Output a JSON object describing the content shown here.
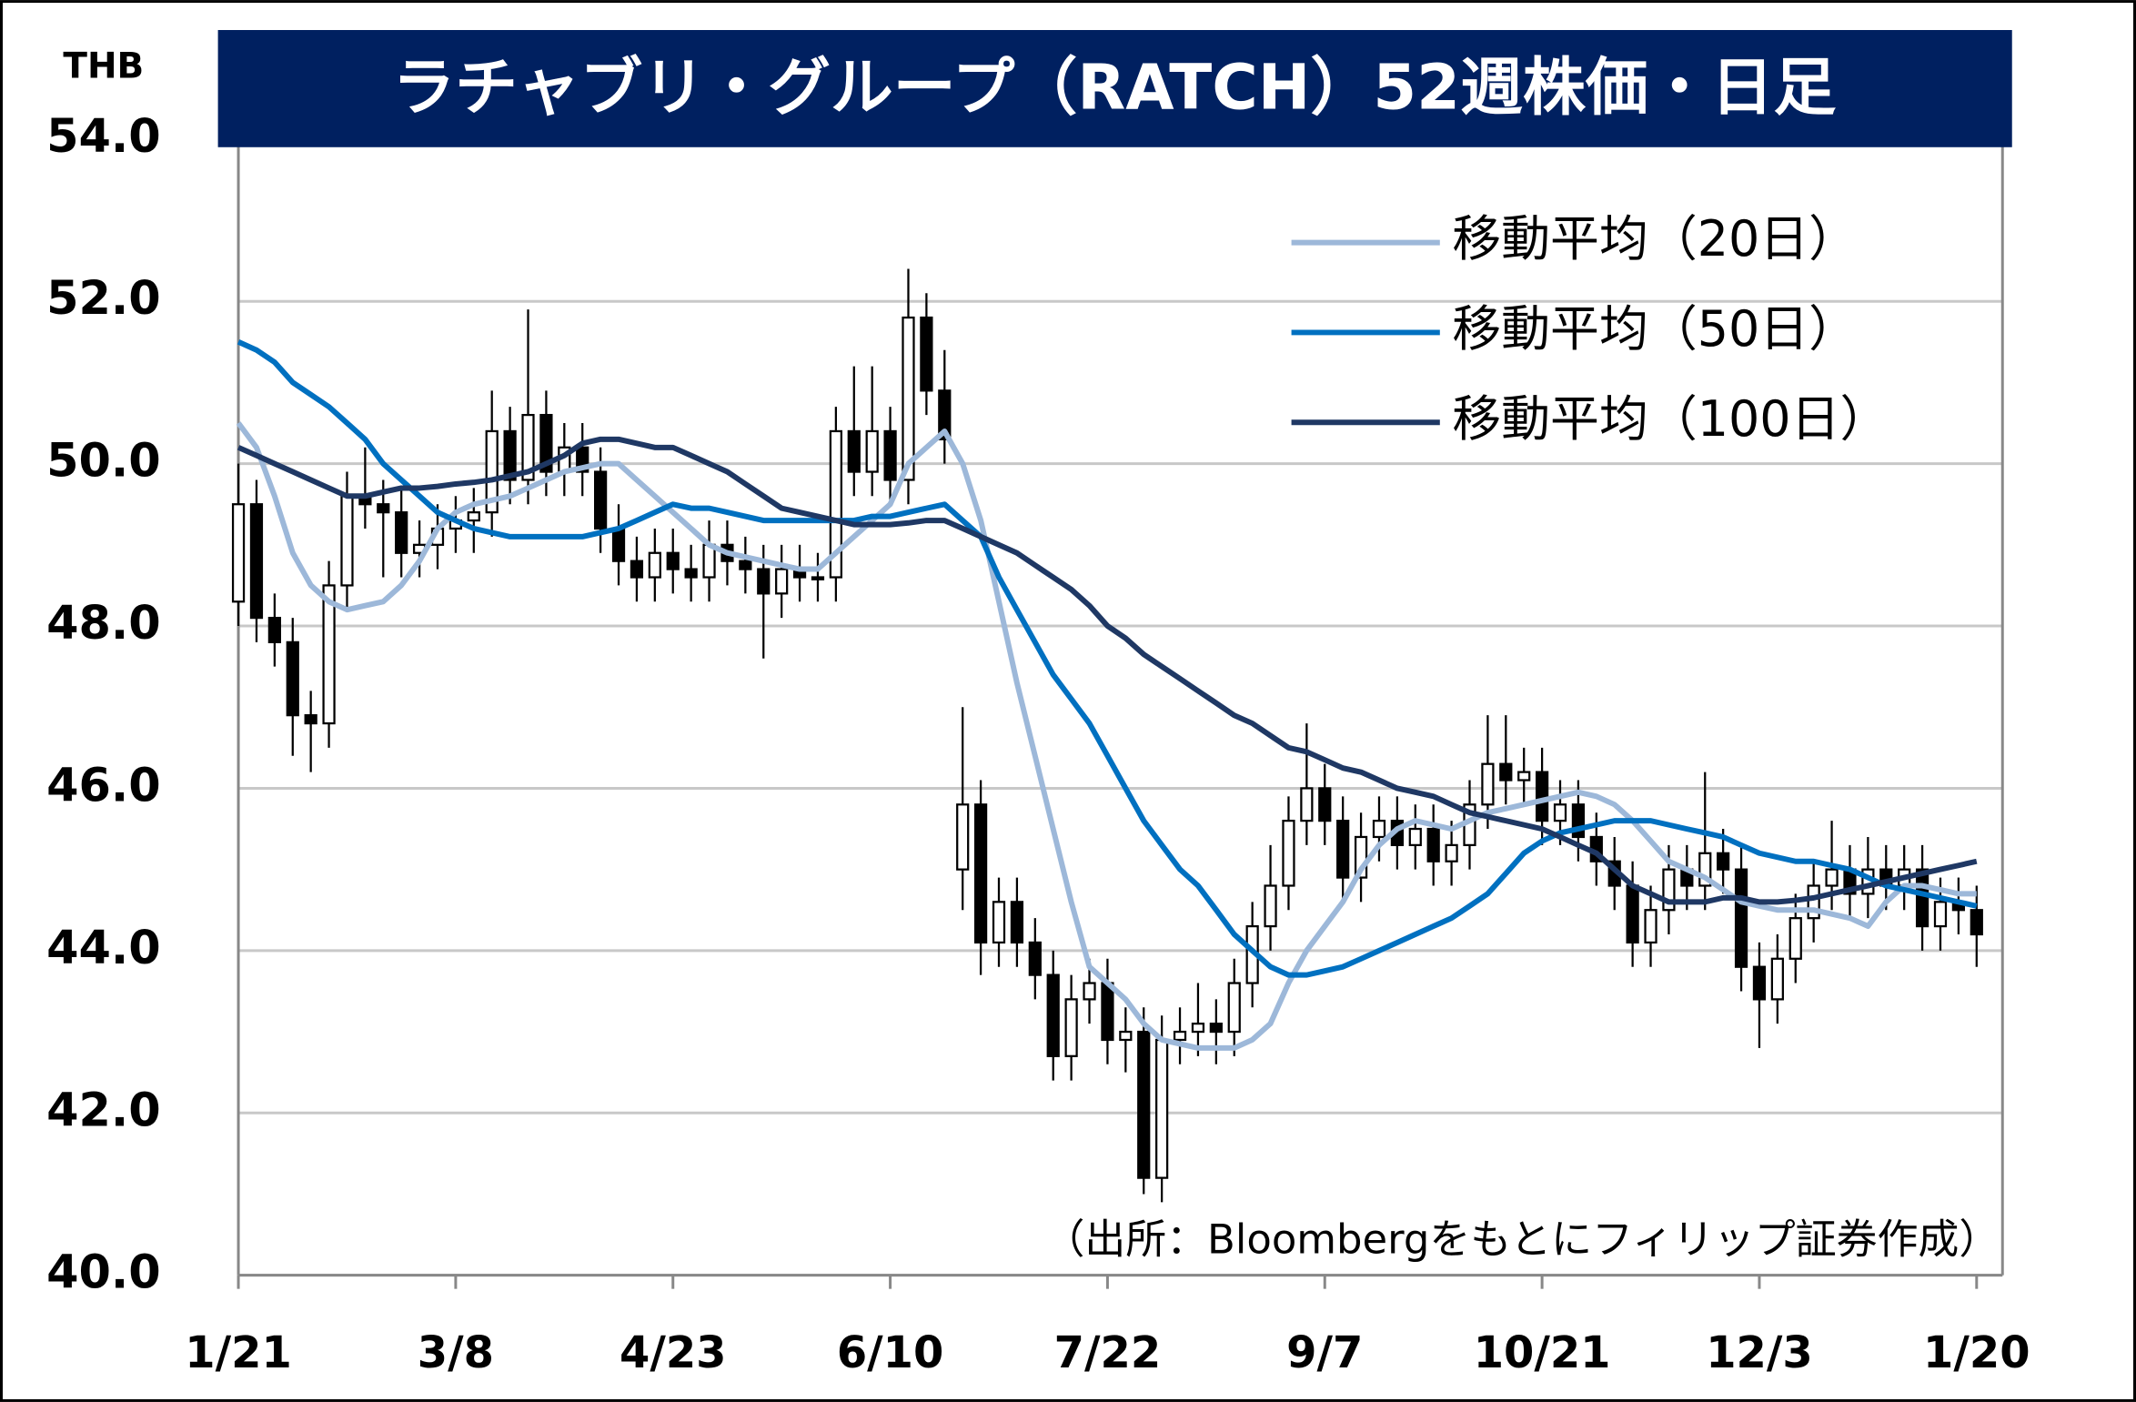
{
  "chart_data": {
    "type": "candlestick",
    "title": "ラチャブリ・グループ（RATCH）52週株価・日足",
    "y_unit": "THB",
    "note": "（出所：Bloombergをもとにフィリップ証券作成）",
    "ylim": [
      40,
      54
    ],
    "yticks": [
      {
        "value": 40,
        "label": "40.0"
      },
      {
        "value": 42,
        "label": "42.0"
      },
      {
        "value": 44,
        "label": "44.0"
      },
      {
        "value": 46,
        "label": "46.0"
      },
      {
        "value": 48,
        "label": "48.0"
      },
      {
        "value": 50,
        "label": "50.0"
      },
      {
        "value": 52,
        "label": "52.0"
      },
      {
        "value": 54,
        "label": "54.0"
      }
    ],
    "grid": true,
    "legend": "upper right",
    "up_color": "#ffffff",
    "down_color": "#000000",
    "categories": [
      "1/21",
      null,
      null,
      null,
      null,
      null,
      null,
      null,
      null,
      null,
      null,
      null,
      "3/8",
      null,
      null,
      null,
      null,
      null,
      null,
      null,
      null,
      null,
      null,
      null,
      "4/23",
      null,
      null,
      null,
      null,
      null,
      null,
      null,
      null,
      null,
      null,
      null,
      "6/10",
      null,
      null,
      null,
      null,
      null,
      null,
      null,
      null,
      null,
      null,
      null,
      "7/22",
      null,
      null,
      null,
      null,
      null,
      null,
      null,
      null,
      null,
      null,
      null,
      "9/7",
      null,
      null,
      null,
      null,
      null,
      null,
      null,
      null,
      null,
      null,
      null,
      "10/21",
      null,
      null,
      null,
      null,
      null,
      null,
      null,
      null,
      null,
      null,
      null,
      "12/3",
      null,
      null,
      null,
      null,
      null,
      null,
      null,
      null,
      null,
      null,
      null,
      "1/20"
    ],
    "open": [
      48.3,
      49.5,
      48.1,
      47.8,
      46.9,
      46.8,
      48.5,
      49.6,
      49.5,
      49.4,
      48.9,
      49.0,
      49.2,
      49.3,
      49.4,
      50.4,
      49.8,
      50.6,
      49.9,
      50.2,
      49.9,
      49.2,
      48.8,
      48.6,
      48.9,
      48.7,
      48.6,
      49.0,
      48.8,
      48.7,
      48.4,
      48.7,
      48.6,
      48.6,
      50.4,
      49.9,
      50.4,
      49.8,
      51.8,
      50.9,
      45.0,
      45.8,
      44.1,
      44.6,
      44.1,
      43.7,
      42.7,
      43.4,
      43.6,
      42.9,
      43.0,
      41.2,
      42.9,
      43.0,
      43.1,
      43.0,
      43.6,
      44.3,
      44.8,
      45.6,
      46.0,
      45.6,
      44.9,
      45.4,
      45.6,
      45.3,
      45.5,
      45.1,
      45.3,
      45.8,
      46.3,
      46.1,
      46.2,
      45.6,
      45.8,
      45.4,
      45.1,
      44.8,
      44.1,
      44.5,
      45.0,
      44.8,
      45.2,
      45.0,
      43.8,
      43.4,
      43.9,
      44.4,
      44.8,
      45.0,
      44.7,
      45.0,
      44.8,
      45.0,
      44.3,
      44.6,
      44.5
    ],
    "high": [
      50.0,
      49.8,
      48.4,
      48.1,
      47.2,
      48.8,
      49.9,
      50.2,
      49.8,
      49.7,
      49.3,
      49.5,
      49.6,
      49.7,
      50.9,
      50.7,
      51.9,
      50.9,
      50.5,
      50.5,
      50.2,
      49.5,
      49.1,
      49.2,
      49.2,
      49.0,
      49.3,
      49.3,
      49.1,
      49.0,
      49.0,
      49.0,
      48.9,
      50.7,
      51.2,
      51.2,
      50.7,
      52.4,
      52.1,
      51.4,
      47.0,
      46.1,
      44.9,
      44.9,
      44.4,
      44.0,
      43.7,
      43.9,
      43.9,
      43.3,
      43.3,
      43.2,
      43.3,
      43.6,
      43.4,
      43.9,
      44.6,
      45.3,
      45.9,
      46.8,
      46.3,
      45.9,
      45.7,
      45.9,
      45.9,
      45.8,
      45.8,
      45.6,
      46.1,
      46.9,
      46.9,
      46.5,
      46.5,
      46.1,
      46.1,
      45.7,
      45.4,
      45.1,
      44.8,
      45.3,
      45.3,
      46.2,
      45.5,
      45.3,
      44.1,
      44.2,
      44.7,
      45.1,
      45.6,
      45.3,
      45.4,
      45.3,
      45.3,
      45.3,
      44.9,
      44.9,
      44.8
    ],
    "low": [
      48.0,
      47.8,
      47.5,
      46.4,
      46.2,
      46.5,
      48.2,
      49.2,
      48.6,
      48.6,
      48.6,
      48.7,
      48.9,
      48.9,
      49.1,
      49.5,
      49.5,
      49.6,
      49.6,
      49.6,
      48.9,
      48.5,
      48.3,
      48.3,
      48.4,
      48.3,
      48.3,
      48.5,
      48.4,
      47.6,
      48.1,
      48.3,
      48.3,
      48.3,
      49.6,
      49.6,
      49.5,
      49.5,
      50.6,
      50.0,
      44.5,
      43.7,
      43.8,
      43.8,
      43.4,
      42.4,
      42.4,
      43.1,
      42.6,
      42.5,
      41.0,
      40.9,
      42.6,
      42.7,
      42.6,
      42.7,
      43.3,
      44.0,
      44.5,
      45.3,
      45.3,
      44.6,
      44.6,
      45.1,
      45.0,
      45.0,
      44.8,
      44.8,
      45.0,
      45.5,
      45.8,
      45.8,
      45.3,
      45.3,
      45.1,
      44.8,
      44.5,
      43.8,
      43.8,
      44.2,
      44.5,
      44.5,
      44.7,
      43.5,
      42.8,
      43.1,
      43.6,
      44.1,
      44.5,
      44.4,
      44.4,
      44.5,
      44.5,
      44.0,
      44.0,
      44.2,
      43.8
    ],
    "close": [
      49.5,
      48.1,
      47.8,
      46.9,
      46.8,
      48.5,
      49.6,
      49.5,
      49.4,
      48.9,
      49.0,
      49.2,
      49.3,
      49.4,
      50.4,
      49.8,
      50.6,
      49.9,
      50.2,
      49.9,
      49.2,
      48.8,
      48.6,
      48.9,
      48.7,
      48.6,
      49.0,
      48.8,
      48.7,
      48.4,
      48.7,
      48.6,
      48.6,
      50.4,
      49.9,
      50.4,
      49.8,
      51.8,
      50.9,
      50.3,
      45.8,
      44.1,
      44.6,
      44.1,
      43.7,
      42.7,
      43.4,
      43.6,
      42.9,
      43.0,
      41.2,
      42.9,
      43.0,
      43.1,
      43.0,
      43.6,
      44.3,
      44.8,
      45.6,
      46.0,
      45.6,
      44.9,
      45.4,
      45.6,
      45.3,
      45.5,
      45.1,
      45.3,
      45.8,
      46.3,
      46.1,
      46.2,
      45.6,
      45.8,
      45.4,
      45.1,
      44.8,
      44.1,
      44.5,
      45.0,
      44.8,
      45.2,
      45.0,
      43.8,
      43.4,
      43.9,
      44.4,
      44.8,
      45.0,
      44.7,
      45.0,
      44.8,
      45.0,
      44.3,
      44.6,
      44.5,
      44.2
    ],
    "series": [
      {
        "name": "移動平均（20日）",
        "color": "#9db8d9",
        "values": [
          50.5,
          50.2,
          49.6,
          48.9,
          48.5,
          48.3,
          48.2,
          48.25,
          48.3,
          48.5,
          48.8,
          49.2,
          49.4,
          49.5,
          49.55,
          49.6,
          49.7,
          49.8,
          49.9,
          49.95,
          50.0,
          50.0,
          49.8,
          49.6,
          49.4,
          49.2,
          49.0,
          48.9,
          48.85,
          48.8,
          48.75,
          48.7,
          48.7,
          48.9,
          49.1,
          49.3,
          49.5,
          50.0,
          50.2,
          50.4,
          50.0,
          49.3,
          48.3,
          47.3,
          46.4,
          45.5,
          44.6,
          43.8,
          43.6,
          43.4,
          43.1,
          42.9,
          42.85,
          42.8,
          42.8,
          42.8,
          42.9,
          43.1,
          43.6,
          44.0,
          44.3,
          44.6,
          45.0,
          45.3,
          45.5,
          45.6,
          45.55,
          45.5,
          45.6,
          45.7,
          45.75,
          45.8,
          45.85,
          45.9,
          45.95,
          45.9,
          45.8,
          45.6,
          45.35,
          45.1,
          45.0,
          44.9,
          44.75,
          44.6,
          44.55,
          44.5,
          44.5,
          44.5,
          44.45,
          44.4,
          44.3,
          44.6,
          44.8,
          44.8,
          44.75,
          44.7,
          44.7
        ]
      },
      {
        "name": "移動平均（50日）",
        "color": "#0070c0",
        "values": [
          51.5,
          51.4,
          51.25,
          51.0,
          50.85,
          50.7,
          50.5,
          50.3,
          50.0,
          49.8,
          49.6,
          49.4,
          49.3,
          49.2,
          49.15,
          49.1,
          49.1,
          49.1,
          49.1,
          49.1,
          49.15,
          49.2,
          49.3,
          49.4,
          49.5,
          49.45,
          49.45,
          49.4,
          49.35,
          49.3,
          49.3,
          49.3,
          49.3,
          49.3,
          49.3,
          49.35,
          49.35,
          49.4,
          49.45,
          49.5,
          49.3,
          49.1,
          48.6,
          48.2,
          47.8,
          47.4,
          47.1,
          46.8,
          46.4,
          46.0,
          45.6,
          45.3,
          45.0,
          44.8,
          44.5,
          44.2,
          44.0,
          43.8,
          43.7,
          43.7,
          43.75,
          43.8,
          43.9,
          44.0,
          44.1,
          44.2,
          44.3,
          44.4,
          44.55,
          44.7,
          44.95,
          45.2,
          45.35,
          45.45,
          45.5,
          45.55,
          45.6,
          45.6,
          45.6,
          45.55,
          45.5,
          45.45,
          45.4,
          45.3,
          45.2,
          45.15,
          45.1,
          45.1,
          45.05,
          45.0,
          44.9,
          44.8,
          44.75,
          44.7,
          44.65,
          44.6,
          44.55
        ]
      },
      {
        "name": "移動平均（100日）",
        "color": "#1f3864",
        "values": [
          50.2,
          50.1,
          50.0,
          49.9,
          49.8,
          49.7,
          49.6,
          49.6,
          49.65,
          49.7,
          49.7,
          49.72,
          49.75,
          49.77,
          49.8,
          49.85,
          49.9,
          50.0,
          50.1,
          50.25,
          50.3,
          50.3,
          50.25,
          50.2,
          50.2,
          50.1,
          50.0,
          49.9,
          49.75,
          49.6,
          49.45,
          49.4,
          49.35,
          49.3,
          49.25,
          49.25,
          49.25,
          49.27,
          49.3,
          49.3,
          49.2,
          49.1,
          49.0,
          48.9,
          48.75,
          48.6,
          48.45,
          48.25,
          48.0,
          47.85,
          47.65,
          47.5,
          47.35,
          47.2,
          47.05,
          46.9,
          46.8,
          46.65,
          46.5,
          46.45,
          46.35,
          46.25,
          46.2,
          46.1,
          46.0,
          45.95,
          45.9,
          45.8,
          45.7,
          45.65,
          45.6,
          45.55,
          45.5,
          45.4,
          45.3,
          45.2,
          45.0,
          44.8,
          44.7,
          44.6,
          44.6,
          44.6,
          44.65,
          44.65,
          44.6,
          44.6,
          44.62,
          44.65,
          44.7,
          44.75,
          44.8,
          44.85,
          44.9,
          44.95,
          45.0,
          45.05,
          45.1
        ]
      }
    ]
  }
}
